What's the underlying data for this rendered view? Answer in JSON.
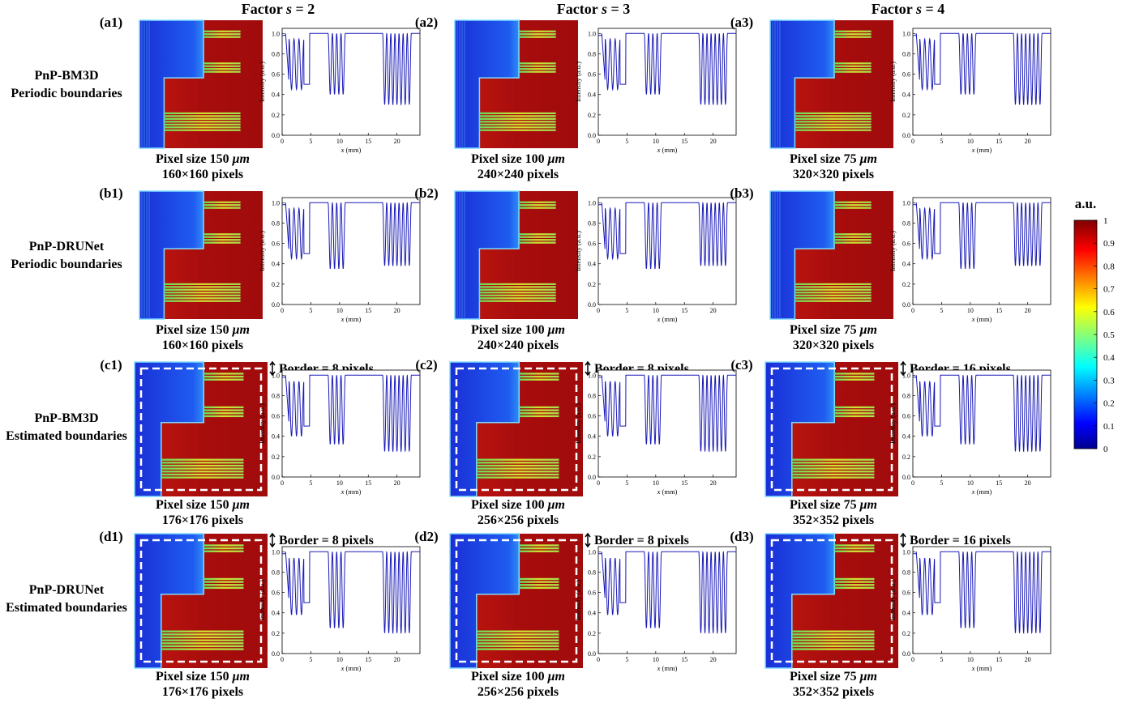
{
  "column_headers": [
    {
      "prefix": "Factor ",
      "var": "s",
      "suffix": " = 2"
    },
    {
      "prefix": "Factor ",
      "var": "s",
      "suffix": " = 3"
    },
    {
      "prefix": "Factor ",
      "var": "s",
      "suffix": " = 4"
    }
  ],
  "rows": [
    {
      "method": "PnP-BM3D",
      "boundary": "Periodic  boundaries",
      "borders": [
        null,
        null,
        null
      ],
      "panels": [
        "(a1)",
        "(a2)",
        "(a3)"
      ],
      "captions": [
        [
          "Pixel size 150 ",
          "160×160 pixels"
        ],
        [
          "Pixel size 100 ",
          "240×240 pixels"
        ],
        [
          "Pixel size 75 ",
          "320×320 pixels"
        ]
      ]
    },
    {
      "method": "PnP-DRUNet",
      "boundary": "Periodic  boundaries",
      "borders": [
        null,
        null,
        null
      ],
      "panels": [
        "(b1)",
        "(b2)",
        "(b3)"
      ],
      "captions": [
        [
          "Pixel size 150 ",
          "160×160 pixels"
        ],
        [
          "Pixel size 100 ",
          "240×240 pixels"
        ],
        [
          "Pixel size 75 ",
          "320×320 pixels"
        ]
      ]
    },
    {
      "method": "PnP-BM3D",
      "boundary": "Estimated boundaries",
      "borders": [
        "Border = 8 pixels",
        "Border = 8 pixels",
        "Border = 16 pixels"
      ],
      "panels": [
        "(c1)",
        "(c2)",
        "(c3)"
      ],
      "captions": [
        [
          "Pixel size 150 ",
          "176×176 pixels"
        ],
        [
          "Pixel size 100 ",
          "256×256 pixels"
        ],
        [
          "Pixel size 75 ",
          "352×352 pixels"
        ]
      ]
    },
    {
      "method": "PnP-DRUNet",
      "boundary": "Estimated boundaries",
      "borders": [
        "Border = 8 pixels",
        "Border = 8 pixels",
        "Border = 16 pixels"
      ],
      "panels": [
        "(d1)",
        "(d2)",
        "(d3)"
      ],
      "captions": [
        [
          "Pixel size 150 ",
          "176×176 pixels"
        ],
        [
          "Pixel size 100 ",
          "256×256 pixels"
        ],
        [
          "Pixel size 75 ",
          "352×352 pixels"
        ]
      ]
    }
  ],
  "unit_mu": "μm",
  "plot_axes": {
    "ylabel": "Intensity (a.u.)",
    "xlabel_var": "x",
    "xlabel_unit": " (mm)",
    "xticks": [
      "0",
      "5",
      "10",
      "15",
      "20"
    ],
    "yticks": [
      "0.0",
      "0.2",
      "0.4",
      "0.6",
      "0.8",
      "1.0"
    ],
    "xlim": [
      0,
      24
    ],
    "ylim": [
      0,
      1.05
    ]
  },
  "profile_minima": [
    {
      "g1": 0.45,
      "g2": 0.4,
      "g3": 0.3
    },
    {
      "g1": 0.45,
      "g2": 0.35,
      "g3": 0.38
    },
    {
      "g1": 0.4,
      "g2": 0.32,
      "g3": 0.25
    },
    {
      "g1": 0.38,
      "g2": 0.25,
      "g3": 0.2
    }
  ],
  "colorbar": {
    "title": "a.u.",
    "ticks": [
      "0",
      "0.1",
      "0.2",
      "0.3",
      "0.4",
      "0.5",
      "0.6",
      "0.7",
      "0.8",
      "0.9",
      "1"
    ],
    "colors": [
      "#00008f",
      "#0000ff",
      "#00ffff",
      "#ffff00",
      "#ff0000",
      "#800000"
    ]
  }
}
